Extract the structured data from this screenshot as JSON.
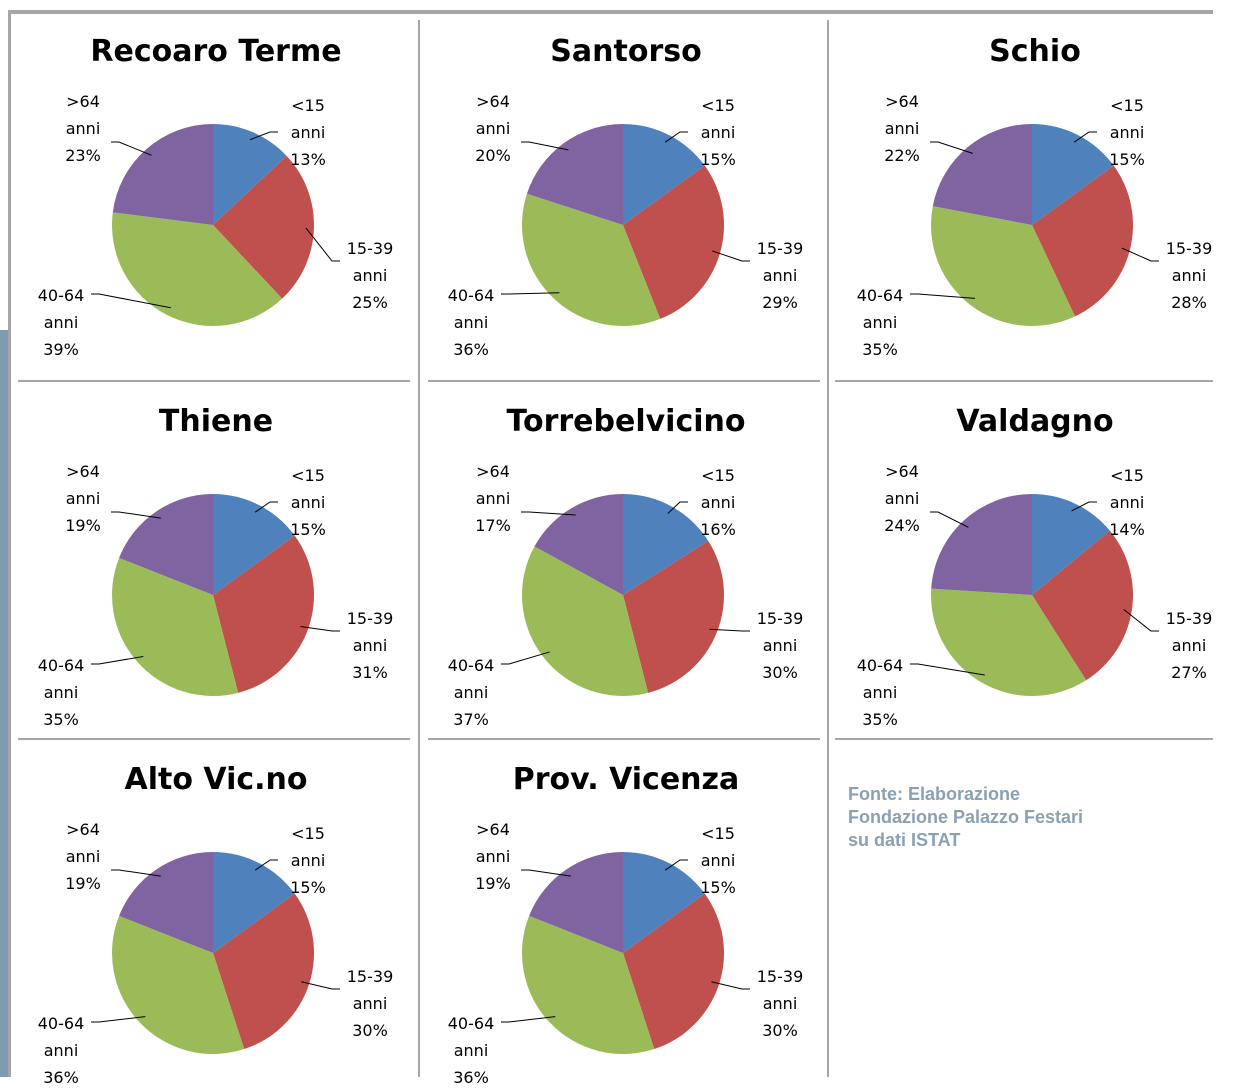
{
  "chart_data": [
    {
      "type": "pie",
      "title": "Recoaro Terme",
      "categories": [
        "<15 anni",
        "15-39 anni",
        "40-64 anni",
        ">64 anni"
      ],
      "values": [
        13,
        25,
        39,
        23
      ],
      "value_labels": [
        "13%",
        "25%",
        "39%",
        "23%"
      ],
      "colors": [
        "#4f81bd",
        "#c0504d",
        "#9bbb59",
        "#8064a2"
      ]
    },
    {
      "type": "pie",
      "title": "Santorso",
      "categories": [
        "<15 anni",
        "15-39 anni",
        "40-64 anni",
        ">64 anni"
      ],
      "values": [
        15,
        29,
        36,
        20
      ],
      "value_labels": [
        "15%",
        "29%",
        "36%",
        "20%"
      ],
      "colors": [
        "#4f81bd",
        "#c0504d",
        "#9bbb59",
        "#8064a2"
      ]
    },
    {
      "type": "pie",
      "title": "Schio",
      "categories": [
        "<15 anni",
        "15-39 anni",
        "40-64 anni",
        ">64 anni"
      ],
      "values": [
        15,
        28,
        35,
        22
      ],
      "value_labels": [
        "15%",
        "28%",
        "35%",
        "22%"
      ],
      "colors": [
        "#4f81bd",
        "#c0504d",
        "#9bbb59",
        "#8064a2"
      ]
    },
    {
      "type": "pie",
      "title": "Thiene",
      "categories": [
        "<15 anni",
        "15-39 anni",
        "40-64 anni",
        ">64 anni"
      ],
      "values": [
        15,
        31,
        35,
        19
      ],
      "value_labels": [
        "15%",
        "31%",
        "35%",
        "19%"
      ],
      "colors": [
        "#4f81bd",
        "#c0504d",
        "#9bbb59",
        "#8064a2"
      ]
    },
    {
      "type": "pie",
      "title": "Torrebelvicino",
      "categories": [
        "<15 anni",
        "15-39 anni",
        "40-64 anni",
        ">64 anni"
      ],
      "values": [
        16,
        30,
        37,
        17
      ],
      "value_labels": [
        "16%",
        "30%",
        "37%",
        "17%"
      ],
      "colors": [
        "#4f81bd",
        "#c0504d",
        "#9bbb59",
        "#8064a2"
      ]
    },
    {
      "type": "pie",
      "title": "Valdagno",
      "categories": [
        "<15 anni",
        "15-39 anni",
        "40-64 anni",
        ">64 anni"
      ],
      "values": [
        14,
        27,
        35,
        24
      ],
      "value_labels": [
        "14%",
        "27%",
        "35%",
        "24%"
      ],
      "colors": [
        "#4f81bd",
        "#c0504d",
        "#9bbb59",
        "#8064a2"
      ]
    },
    {
      "type": "pie",
      "title": "Alto Vic.no",
      "categories": [
        "<15 anni",
        "15-39 anni",
        "40-64 anni",
        ">64 anni"
      ],
      "values": [
        15,
        30,
        36,
        19
      ],
      "value_labels": [
        "15%",
        "30%",
        "36%",
        "19%"
      ],
      "colors": [
        "#4f81bd",
        "#c0504d",
        "#9bbb59",
        "#8064a2"
      ]
    },
    {
      "type": "pie",
      "title": "Prov. Vicenza",
      "categories": [
        "<15 anni",
        "15-39 anni",
        "40-64 anni",
        ">64 anni"
      ],
      "values": [
        15,
        30,
        36,
        19
      ],
      "value_labels": [
        "15%",
        "30%",
        "36%",
        "19%"
      ],
      "colors": [
        "#4f81bd",
        "#c0504d",
        "#9bbb59",
        "#8064a2"
      ]
    }
  ],
  "source": [
    "Fonte: Elaborazione",
    "Fondazione Palazzo Festari",
    "su dati ISTAT"
  ]
}
